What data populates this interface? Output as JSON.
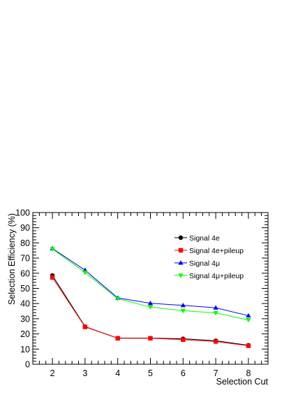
{
  "chart_data": {
    "type": "line",
    "title": "",
    "xlabel": "Selection Cut",
    "ylabel": "Selection Efficiency (%)",
    "xlim": [
      1.4,
      8.6
    ],
    "ylim": [
      0,
      100
    ],
    "x": [
      2,
      3,
      4,
      5,
      6,
      7,
      8
    ],
    "xticks": [
      2,
      3,
      4,
      5,
      6,
      7,
      8
    ],
    "yticks": [
      0,
      10,
      20,
      30,
      40,
      50,
      60,
      70,
      80,
      90,
      100
    ],
    "grid": false,
    "legend_position": "top-right",
    "series": [
      {
        "name": "Signal 4e",
        "color": "#000000",
        "marker": "circle",
        "values": [
          58.5,
          24.8,
          17.2,
          17.2,
          16.8,
          15.5,
          12.5
        ]
      },
      {
        "name": "Signal 4e+pileup",
        "color": "#ff0000",
        "marker": "square",
        "values": [
          57.2,
          24.6,
          17.1,
          17.1,
          16.2,
          15.0,
          12.2
        ]
      },
      {
        "name": "Signal 4μ",
        "color": "#0000ff",
        "marker": "triangle-up",
        "values": [
          76.3,
          62.0,
          43.7,
          40.2,
          38.8,
          37.2,
          32.0
        ]
      },
      {
        "name": "Signal 4μ+pileup",
        "color": "#00ff00",
        "marker": "triangle-down",
        "values": [
          76.0,
          60.5,
          43.2,
          37.7,
          35.3,
          33.8,
          29.2
        ]
      }
    ]
  }
}
